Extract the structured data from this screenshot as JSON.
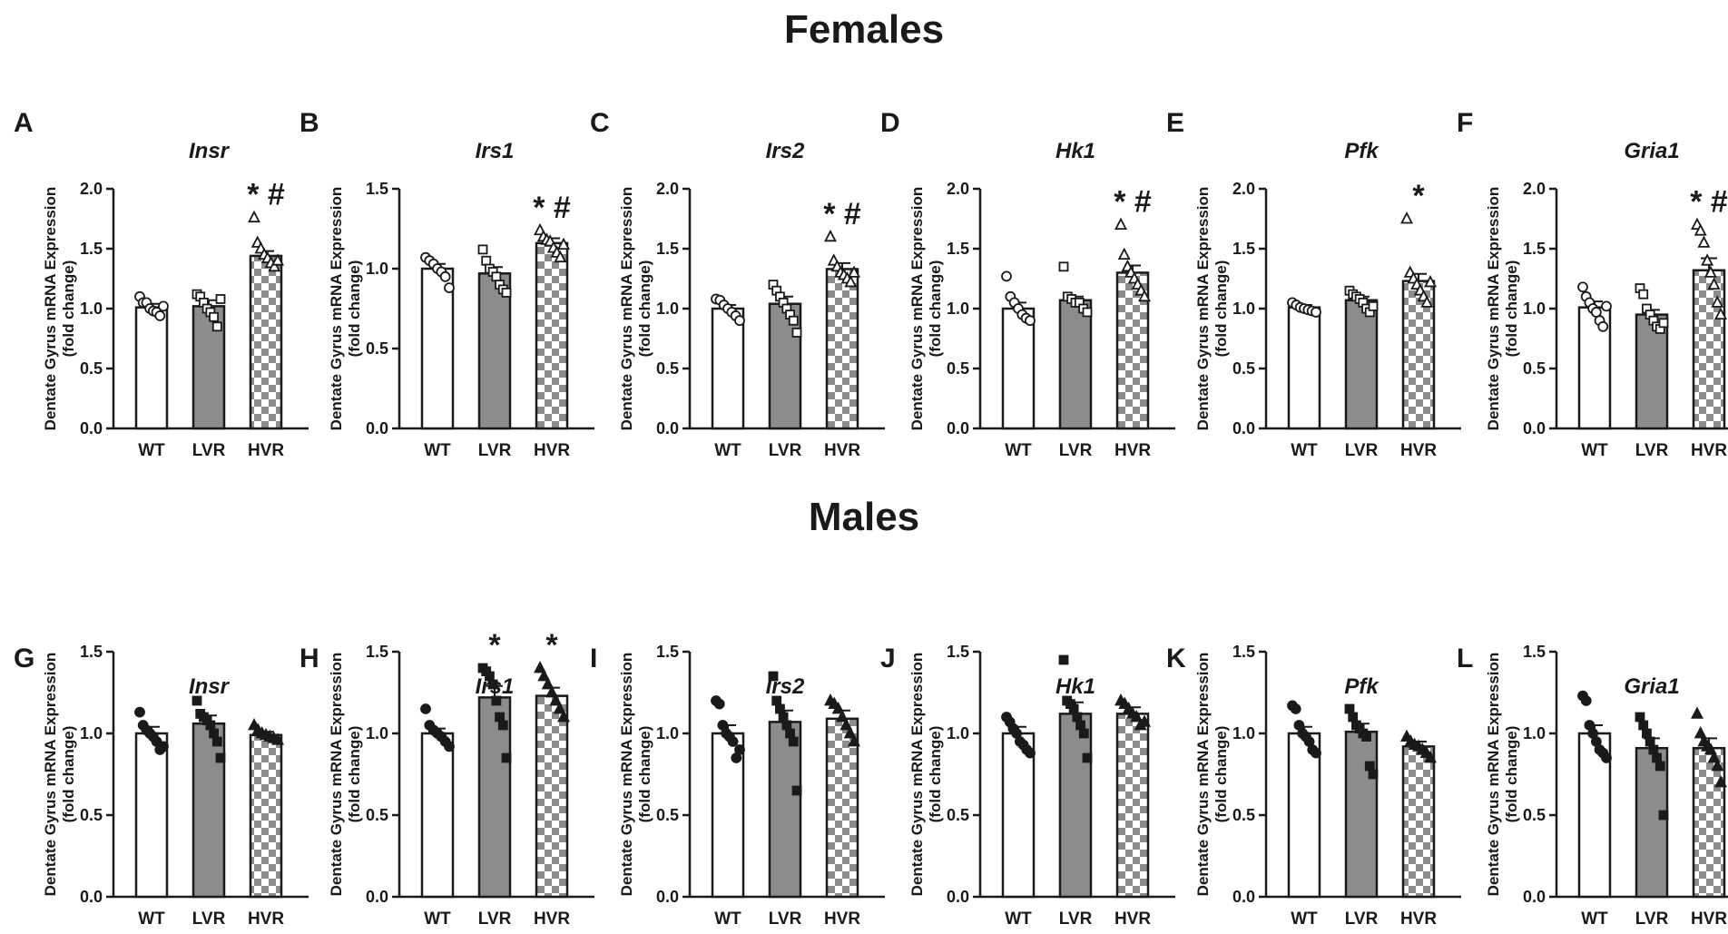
{
  "sections": {
    "females": "Females",
    "males": "Males"
  },
  "groups": [
    "WT",
    "LVR",
    "HVR"
  ],
  "colors": {
    "wt_fill": "#ffffff",
    "lvr_fill": "#8c8c8c",
    "hvr_checker_light": "#ffffff",
    "hvr_checker_dark": "#8c8c8c",
    "stroke": "#1a1a1a"
  },
  "chart_data": [
    {
      "type": "bar",
      "panel": "A",
      "sex": "females",
      "title": "Insr",
      "ylabel": [
        "Dentate Gyrus mRNA Expression",
        "(fold change)"
      ],
      "categories": [
        "WT",
        "LVR",
        "HVR"
      ],
      "values": [
        1.01,
        1.02,
        1.44
      ],
      "sem": [
        0.03,
        0.05,
        0.04
      ],
      "ylim": [
        0,
        2.0
      ],
      "yticks": [
        "0.0",
        "0.5",
        "1.0",
        "1.5",
        "2.0"
      ],
      "points": [
        [
          1.1,
          1.05,
          1.05,
          1.0,
          0.98,
          0.97,
          0.94,
          1.02
        ],
        [
          1.12,
          1.1,
          1.05,
          1.0,
          0.97,
          0.93,
          0.85,
          1.08
        ],
        [
          1.76,
          1.55,
          1.5,
          1.45,
          1.42,
          1.38,
          1.35,
          1.4
        ]
      ],
      "markers": "open",
      "annotations": [
        "",
        "",
        "* #"
      ]
    },
    {
      "type": "bar",
      "panel": "B",
      "sex": "females",
      "title": "Irs1",
      "ylabel": [
        "Dentate Gyrus mRNA Expression",
        "(fold change)"
      ],
      "categories": [
        "WT",
        "LVR",
        "HVR"
      ],
      "values": [
        1.0,
        0.97,
        1.16
      ],
      "sem": [
        0.03,
        0.04,
        0.03
      ],
      "ylim": [
        0,
        1.5
      ],
      "yticks": [
        "0.0",
        "0.5",
        "1.0",
        "1.5"
      ],
      "points": [
        [
          1.07,
          1.05,
          1.03,
          1.0,
          0.98,
          0.95,
          0.88
        ],
        [
          1.12,
          1.05,
          1.0,
          0.98,
          0.95,
          0.9,
          0.87,
          0.85
        ],
        [
          1.24,
          1.2,
          1.18,
          1.17,
          1.13,
          1.1,
          1.07,
          1.15
        ]
      ],
      "markers": "open",
      "annotations": [
        "",
        "",
        "* #"
      ]
    },
    {
      "type": "bar",
      "panel": "C",
      "sex": "females",
      "title": "Irs2",
      "ylabel": [
        "Dentate Gyrus mRNA Expression",
        "(fold change)"
      ],
      "categories": [
        "WT",
        "LVR",
        "HVR"
      ],
      "values": [
        1.0,
        1.04,
        1.33
      ],
      "sem": [
        0.03,
        0.06,
        0.05
      ],
      "ylim": [
        0,
        2.0
      ],
      "yticks": [
        "0.0",
        "0.5",
        "1.0",
        "1.5",
        "2.0"
      ],
      "points": [
        [
          1.08,
          1.07,
          1.03,
          1.0,
          0.97,
          0.94,
          0.9
        ],
        [
          1.2,
          1.15,
          1.1,
          1.05,
          1.0,
          0.95,
          0.9,
          0.8
        ],
        [
          1.6,
          1.4,
          1.35,
          1.3,
          1.28,
          1.25,
          1.22,
          1.3
        ]
      ],
      "markers": "open",
      "annotations": [
        "",
        "",
        "* #"
      ]
    },
    {
      "type": "bar",
      "panel": "D",
      "sex": "females",
      "title": "Hk1",
      "ylabel": [
        "Dentate Gyrus mRNA Expression",
        "(fold change)"
      ],
      "categories": [
        "WT",
        "LVR",
        "HVR"
      ],
      "values": [
        1.0,
        1.07,
        1.3
      ],
      "sem": [
        0.05,
        0.03,
        0.06
      ],
      "ylim": [
        0,
        2.0
      ],
      "yticks": [
        "0.0",
        "0.5",
        "1.0",
        "1.5",
        "2.0"
      ],
      "points": [
        [
          1.27,
          1.1,
          1.05,
          1.0,
          0.95,
          0.92,
          0.9
        ],
        [
          1.35,
          1.1,
          1.08,
          1.05,
          1.05,
          1.0,
          0.97
        ],
        [
          1.7,
          1.45,
          1.35,
          1.3,
          1.25,
          1.2,
          1.15,
          1.1
        ]
      ],
      "markers": "open",
      "annotations": [
        "",
        "",
        "* #"
      ]
    },
    {
      "type": "bar",
      "panel": "E",
      "sex": "females",
      "title": "Pfk",
      "ylabel": [
        "Dentate Gyrus mRNA Expression",
        "(fold change)"
      ],
      "categories": [
        "WT",
        "LVR",
        "HVR"
      ],
      "values": [
        1.01,
        1.07,
        1.23
      ],
      "sem": [
        0.02,
        0.03,
        0.06
      ],
      "ylim": [
        0,
        2.0
      ],
      "yticks": [
        "0.0",
        "0.5",
        "1.0",
        "1.5",
        "2.0"
      ],
      "points": [
        [
          1.05,
          1.03,
          1.01,
          1.0,
          0.99,
          0.98,
          0.97
        ],
        [
          1.15,
          1.12,
          1.1,
          1.08,
          1.05,
          1.0,
          0.97,
          1.02
        ],
        [
          1.75,
          1.3,
          1.25,
          1.2,
          1.15,
          1.1,
          1.05,
          1.22
        ]
      ],
      "markers": "open",
      "annotations": [
        "",
        "",
        "*"
      ]
    },
    {
      "type": "bar",
      "panel": "F",
      "sex": "females",
      "title": "Gria1",
      "ylabel": [
        "Dentate Gyrus mRNA Expression",
        "(fold change)"
      ],
      "categories": [
        "WT",
        "LVR",
        "HVR"
      ],
      "values": [
        1.01,
        0.95,
        1.32
      ],
      "sem": [
        0.05,
        0.04,
        0.1
      ],
      "ylim": [
        0,
        2.0
      ],
      "yticks": [
        "0.0",
        "0.5",
        "1.0",
        "1.5",
        "2.0"
      ],
      "points": [
        [
          1.18,
          1.1,
          1.05,
          1.0,
          0.97,
          0.9,
          0.85,
          1.02
        ],
        [
          1.17,
          1.12,
          1.0,
          0.95,
          0.9,
          0.85,
          0.83,
          0.88
        ],
        [
          1.7,
          1.65,
          1.55,
          1.4,
          1.3,
          1.2,
          1.05,
          0.95
        ]
      ],
      "markers": "open",
      "annotations": [
        "",
        "",
        "* #"
      ]
    },
    {
      "type": "bar",
      "panel": "G",
      "sex": "males",
      "title": "Insr",
      "ylabel": [
        "Dentate Gyrus mRNA Expression",
        "(fold change)"
      ],
      "categories": [
        "WT",
        "LVR",
        "HVR"
      ],
      "values": [
        1.0,
        1.06,
        0.99
      ],
      "sem": [
        0.04,
        0.05,
        0.02
      ],
      "ylim": [
        0,
        1.5
      ],
      "yticks": [
        "0.0",
        "0.5",
        "1.0",
        "1.5"
      ],
      "points": [
        [
          1.13,
          1.05,
          1.02,
          1.0,
          0.98,
          0.95,
          0.9,
          0.92
        ],
        [
          1.2,
          1.12,
          1.1,
          1.08,
          1.05,
          1.0,
          0.95,
          0.85
        ],
        [
          1.05,
          1.02,
          1.0,
          0.99,
          0.98,
          0.97,
          0.96
        ]
      ],
      "markers": "filled",
      "annotations": [
        "",
        "",
        ""
      ]
    },
    {
      "type": "bar",
      "panel": "H",
      "sex": "males",
      "title": "Irs1",
      "ylabel": [
        "Dentate Gyrus mRNA Expression",
        "(fold change)"
      ],
      "categories": [
        "WT",
        "LVR",
        "HVR"
      ],
      "values": [
        1.0,
        1.22,
        1.23
      ],
      "sem": [
        0.03,
        0.07,
        0.05
      ],
      "ylim": [
        0,
        1.5
      ],
      "yticks": [
        "0.0",
        "0.5",
        "1.0",
        "1.5"
      ],
      "points": [
        [
          1.15,
          1.05,
          1.02,
          1.0,
          0.98,
          0.95,
          0.92
        ],
        [
          1.4,
          1.38,
          1.35,
          1.3,
          1.2,
          1.1,
          1.05,
          0.85
        ],
        [
          1.4,
          1.35,
          1.3,
          1.25,
          1.2,
          1.15,
          1.1
        ]
      ],
      "markers": "filled",
      "annotations": [
        "",
        "*",
        "*"
      ]
    },
    {
      "type": "bar",
      "panel": "I",
      "sex": "males",
      "title": "Irs2",
      "ylabel": [
        "Dentate Gyrus mRNA Expression",
        "(fold change)"
      ],
      "categories": [
        "WT",
        "LVR",
        "HVR"
      ],
      "values": [
        1.0,
        1.07,
        1.09
      ],
      "sem": [
        0.05,
        0.07,
        0.05
      ],
      "ylim": [
        0,
        1.5
      ],
      "yticks": [
        "0.0",
        "0.5",
        "1.0",
        "1.5"
      ],
      "points": [
        [
          1.2,
          1.18,
          1.05,
          1.0,
          0.98,
          0.95,
          0.85,
          0.9
        ],
        [
          1.35,
          1.2,
          1.15,
          1.1,
          1.05,
          1.0,
          0.95,
          0.65
        ],
        [
          1.2,
          1.18,
          1.15,
          1.1,
          1.05,
          1.0,
          0.95
        ]
      ],
      "markers": "filled",
      "annotations": [
        "",
        "",
        ""
      ]
    },
    {
      "type": "bar",
      "panel": "J",
      "sex": "males",
      "title": "Hk1",
      "ylabel": [
        "Dentate Gyrus mRNA Expression",
        "(fold change)"
      ],
      "categories": [
        "WT",
        "LVR",
        "HVR"
      ],
      "values": [
        1.0,
        1.12,
        1.12
      ],
      "sem": [
        0.04,
        0.07,
        0.04
      ],
      "ylim": [
        0,
        1.5
      ],
      "yticks": [
        "0.0",
        "0.5",
        "1.0",
        "1.5"
      ],
      "points": [
        [
          1.1,
          1.07,
          1.03,
          1.0,
          0.95,
          0.93,
          0.9,
          0.88
        ],
        [
          1.45,
          1.2,
          1.18,
          1.15,
          1.1,
          1.05,
          1.0,
          0.85
        ],
        [
          1.2,
          1.18,
          1.15,
          1.12,
          1.1,
          1.05,
          1.07
        ]
      ],
      "markers": "filled",
      "annotations": [
        "",
        "",
        ""
      ]
    },
    {
      "type": "bar",
      "panel": "K",
      "sex": "males",
      "title": "Pfk",
      "ylabel": [
        "Dentate Gyrus mRNA Expression",
        "(fold change)"
      ],
      "categories": [
        "WT",
        "LVR",
        "HVR"
      ],
      "values": [
        1.0,
        1.01,
        0.92
      ],
      "sem": [
        0.04,
        0.05,
        0.03
      ],
      "ylim": [
        0,
        1.5
      ],
      "yticks": [
        "0.0",
        "0.5",
        "1.0",
        "1.5"
      ],
      "points": [
        [
          1.17,
          1.15,
          1.05,
          1.0,
          0.98,
          0.95,
          0.9,
          0.88
        ],
        [
          1.15,
          1.1,
          1.05,
          1.03,
          1.0,
          0.98,
          0.8,
          0.75
        ],
        [
          0.98,
          0.95,
          0.93,
          0.92,
          0.9,
          0.88,
          0.85
        ]
      ],
      "markers": "filled",
      "annotations": [
        "",
        "",
        ""
      ]
    },
    {
      "type": "bar",
      "panel": "L",
      "sex": "males",
      "title": "Gria1",
      "ylabel": [
        "Dentate Gyrus mRNA Expression",
        "(fold change)"
      ],
      "categories": [
        "WT",
        "LVR",
        "HVR"
      ],
      "values": [
        1.0,
        0.91,
        0.91
      ],
      "sem": [
        0.05,
        0.06,
        0.06
      ],
      "ylim": [
        0,
        1.5
      ],
      "yticks": [
        "0.0",
        "0.5",
        "1.0",
        "1.5"
      ],
      "points": [
        [
          1.23,
          1.2,
          1.05,
          1.0,
          0.95,
          0.9,
          0.88,
          0.85
        ],
        [
          1.1,
          1.05,
          1.0,
          0.95,
          0.9,
          0.85,
          0.8,
          0.5
        ],
        [
          1.12,
          1.0,
          0.95,
          0.92,
          0.9,
          0.85,
          0.8,
          0.7
        ]
      ],
      "markers": "filled",
      "annotations": [
        "",
        "",
        ""
      ]
    }
  ]
}
